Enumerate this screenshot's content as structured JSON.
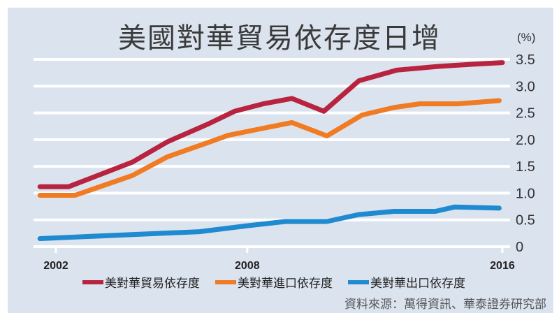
{
  "chart_data": {
    "type": "line",
    "title": "美國對華貿易依存度日增",
    "unit_label": "(%)",
    "xlabel": "",
    "ylabel": "",
    "ylim": [
      0,
      3.5
    ],
    "xlim": [
      2001.5,
      2016
    ],
    "y_ticks": [
      "0",
      "0.5",
      "1.0",
      "1.5",
      "2.0",
      "2.5",
      "3.0",
      "3.5"
    ],
    "y_tick_values": [
      0,
      0.5,
      1.0,
      1.5,
      2.0,
      2.5,
      3.0,
      3.5
    ],
    "x_ticks": [
      "2002",
      "2008",
      "2016"
    ],
    "x_tick_values": [
      2002,
      2008,
      2016
    ],
    "grid": true,
    "legend_position": "bottom",
    "series": [
      {
        "name": "美對華貿易依存度",
        "color": "#b8233f",
        "x": [
          2001.5,
          2002.4,
          2004.4,
          2005.5,
          2006.8,
          2007.6,
          2008.5,
          2009.4,
          2010.4,
          2011.5,
          2012.7,
          2014.0,
          2015.1,
          2016.0
        ],
        "values": [
          1.12,
          1.12,
          1.58,
          1.96,
          2.3,
          2.53,
          2.67,
          2.77,
          2.53,
          3.1,
          3.3,
          3.37,
          3.41,
          3.44
        ]
      },
      {
        "name": "美對華進口依存度",
        "color": "#f07b22",
        "x": [
          2001.5,
          2002.6,
          2004.4,
          2005.5,
          2006.7,
          2007.4,
          2008.4,
          2009.4,
          2010.5,
          2011.6,
          2012.6,
          2013.4,
          2014.6,
          2015.9
        ],
        "values": [
          0.96,
          0.96,
          1.33,
          1.68,
          1.93,
          2.08,
          2.2,
          2.32,
          2.07,
          2.46,
          2.6,
          2.67,
          2.67,
          2.73
        ]
      },
      {
        "name": "美對華出口依存度",
        "color": "#1f8ad0",
        "x": [
          2001.5,
          2003.0,
          2006.5,
          2008.0,
          2009.2,
          2010.5,
          2011.5,
          2012.6,
          2013.9,
          2014.5,
          2015.9
        ],
        "values": [
          0.15,
          0.19,
          0.28,
          0.39,
          0.47,
          0.47,
          0.6,
          0.66,
          0.66,
          0.74,
          0.72
        ]
      }
    ]
  },
  "source": "資料來源：萬得資訊、華泰證券研究部"
}
